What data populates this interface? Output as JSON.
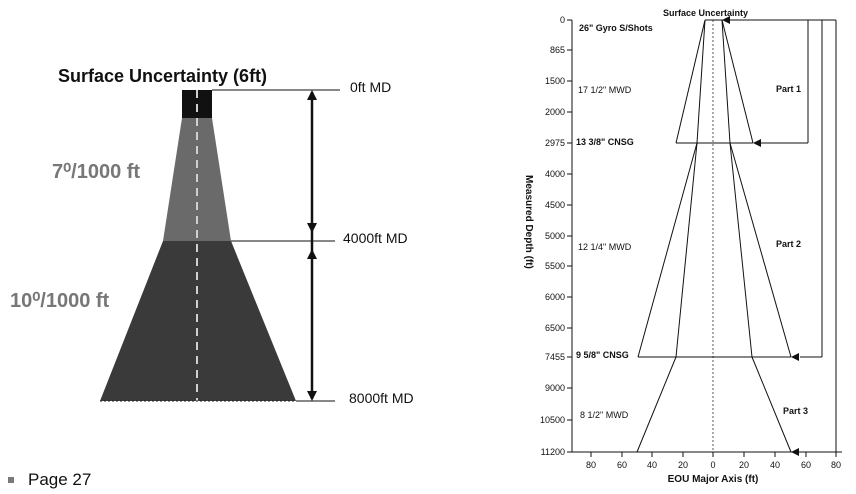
{
  "left": {
    "title": "Surface Uncertainty (6ft)",
    "rate_upper": "7⁰/1000 ft",
    "rate_lower": "10⁰/1000 ft",
    "depth_markers": [
      "0ft MD",
      "4000ft MD",
      "8000ft MD"
    ],
    "colors": {
      "cap": "#111111",
      "upper_section": "#6a6a6a",
      "lower_section": "#3a3a3a",
      "rate_text": "#777777"
    }
  },
  "right": {
    "title": "Surface Uncertainty",
    "y_axis_label": "Measured Depth (ft)",
    "x_axis_label": "EOU Major Axis (ft)",
    "y_ticks": [
      "0",
      "865",
      "1500",
      "2000",
      "2975",
      "4000",
      "4500",
      "5000",
      "5500",
      "6000",
      "6500",
      "7455",
      "9000",
      "10500",
      "11200"
    ],
    "x_ticks": [
      "80",
      "60",
      "40",
      "20",
      "0",
      "20",
      "40",
      "60",
      "80"
    ],
    "annotations": [
      "26\" Gyro S/Shots",
      "17 1/2\" MWD",
      "13 3/8\" CNSG",
      "12 1/4\" MWD",
      "9 5/8\" CNSG",
      "8 1/2\" MWD"
    ],
    "parts": [
      "Part 1",
      "Part 2",
      "Part 3"
    ]
  },
  "footer": {
    "page_label": "Page 27"
  }
}
